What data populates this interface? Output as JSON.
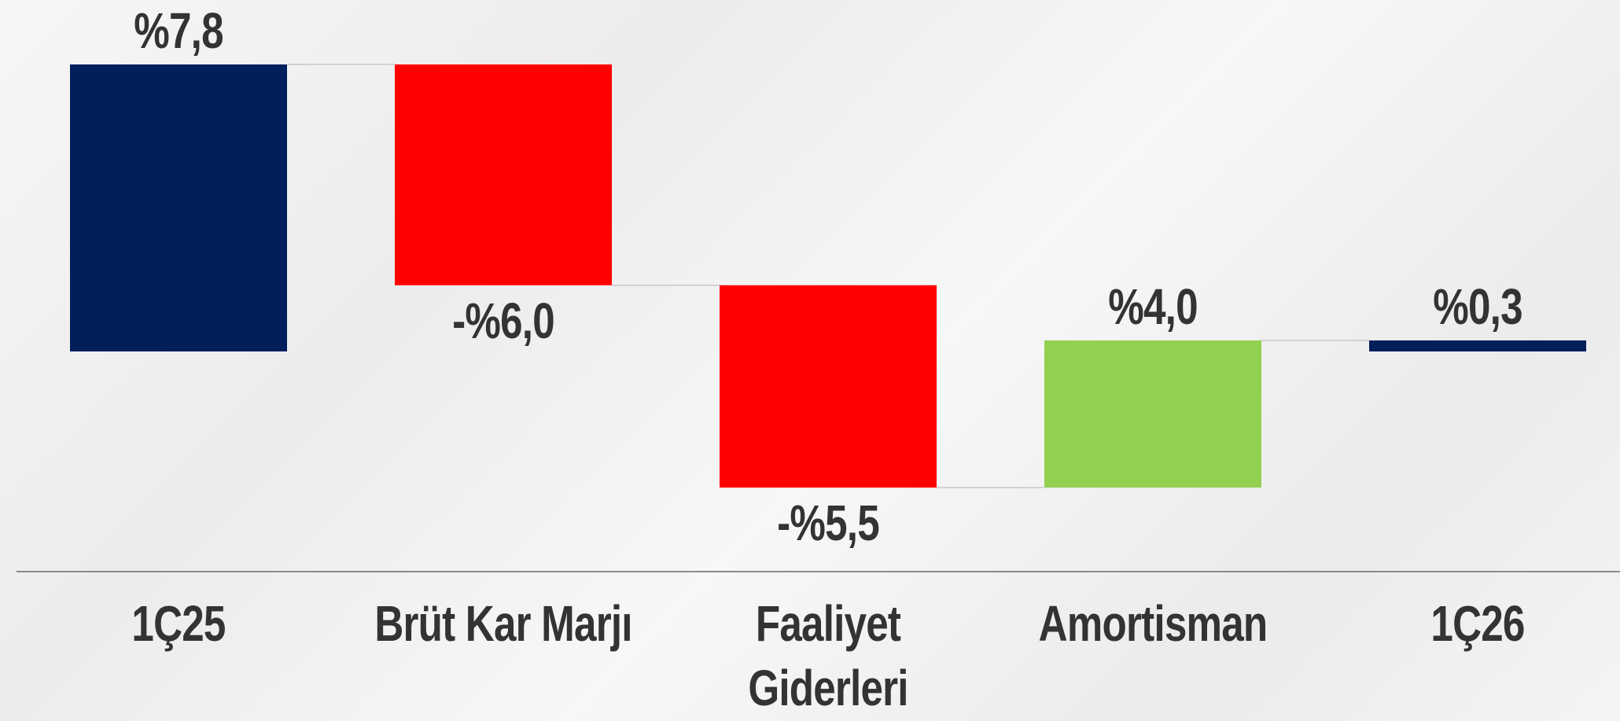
{
  "chart_data": {
    "type": "waterfall",
    "categories": [
      "1Ç25",
      "Brüt Kar Marjı",
      "Faaliyet Giderleri",
      "Amortisman",
      "1Ç26"
    ],
    "values": [
      7.8,
      -6.0,
      -5.5,
      4.0,
      0.3
    ],
    "value_labels": [
      "%7,8",
      "-%6,0",
      "-%5,5",
      "%4,0",
      "%0,3"
    ],
    "measure": [
      "absolute",
      "relative",
      "relative",
      "relative",
      "total"
    ],
    "colors": {
      "total": "#001f5b",
      "decrease": "#ff0000",
      "increase": "#92d050"
    }
  }
}
